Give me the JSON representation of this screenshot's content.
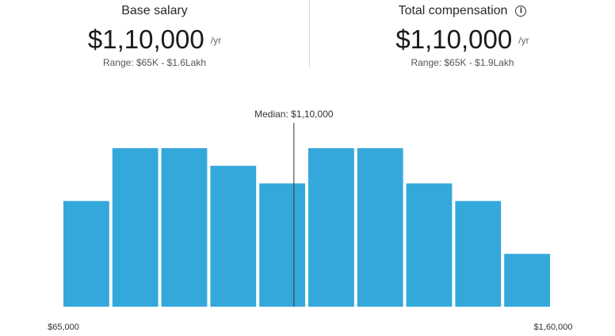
{
  "summary": {
    "base": {
      "title": "Base salary",
      "value": "$1,10,000",
      "unit": "/yr",
      "range": "Range: $65K - $1.6Lakh"
    },
    "total": {
      "title": "Total compensation",
      "value": "$1,10,000",
      "unit": "/yr",
      "range": "Range: $65K - $1.9Lakh",
      "info_icon": "info-icon"
    }
  },
  "chart_data": {
    "type": "bar",
    "title": "",
    "xlabel": "",
    "ylabel": "",
    "x_min_label": "$65,000",
    "x_max_label": "$1,60,000",
    "x_range": [
      65000,
      160000
    ],
    "values": [
      6,
      9,
      9,
      8,
      7,
      9,
      9,
      7,
      6,
      3
    ],
    "ylim": [
      0,
      10
    ],
    "median": 110000,
    "median_label": "Median: $1,10,000",
    "bar_color": "#34a8db",
    "grid": false,
    "legend": "none"
  }
}
